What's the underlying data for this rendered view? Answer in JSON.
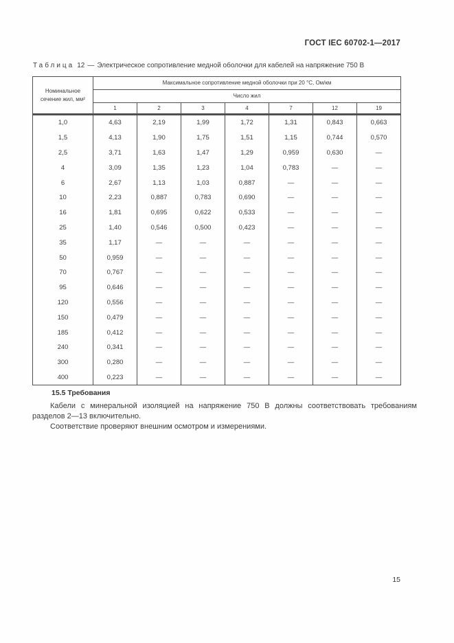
{
  "page": {
    "header": "ГОСТ IEC 60702-1—2017",
    "page_number": "15"
  },
  "table_caption": {
    "label": "Таблица",
    "number": "12",
    "dash": "—",
    "title": "Электрическое сопротивление медной оболочки для кабелей на напряжение 750 В"
  },
  "table": {
    "col1_header": "Номинальное сечение жил, мм²",
    "main_header": "Максимальное сопротивление медной оболочки при 20 °С, Ом/км",
    "sub_header": "Число жил",
    "columns": [
      "1",
      "2",
      "3",
      "4",
      "7",
      "12",
      "19"
    ],
    "rows": [
      [
        "1,0",
        "4,63",
        "2,19",
        "1,99",
        "1,72",
        "1,31",
        "0,843",
        "0,663"
      ],
      [
        "1,5",
        "4,13",
        "1,90",
        "1,75",
        "1,51",
        "1,15",
        "0,744",
        "0,570"
      ],
      [
        "2,5",
        "3,71",
        "1,63",
        "1,47",
        "1,29",
        "0,959",
        "0,630",
        "—"
      ],
      [
        "4",
        "3,09",
        "1,35",
        "1,23",
        "1,04",
        "0,783",
        "—",
        "—"
      ],
      [
        "6",
        "2,67",
        "1,13",
        "1,03",
        "0,887",
        "—",
        "—",
        "—"
      ],
      [
        "10",
        "2,23",
        "0,887",
        "0,783",
        "0,690",
        "—",
        "—",
        "—"
      ],
      [
        "16",
        "1,81",
        "0,695",
        "0,622",
        "0,533",
        "—",
        "—",
        "—"
      ],
      [
        "25",
        "1,40",
        "0,546",
        "0,500",
        "0,423",
        "—",
        "—",
        "—"
      ],
      [
        "35",
        "1,17",
        "—",
        "—",
        "—",
        "—",
        "—",
        "—"
      ],
      [
        "50",
        "0,959",
        "—",
        "—",
        "—",
        "—",
        "—",
        "—"
      ],
      [
        "70",
        "0,767",
        "—",
        "—",
        "—",
        "—",
        "—",
        "—"
      ],
      [
        "95",
        "0,646",
        "—",
        "—",
        "—",
        "—",
        "—",
        "—"
      ],
      [
        "120",
        "0,556",
        "—",
        "—",
        "—",
        "—",
        "—",
        "—"
      ],
      [
        "150",
        "0,479",
        "—",
        "—",
        "—",
        "—",
        "—",
        "—"
      ],
      [
        "185",
        "0,412",
        "—",
        "—",
        "—",
        "—",
        "—",
        "—"
      ],
      [
        "240",
        "0,341",
        "—",
        "—",
        "—",
        "—",
        "—",
        "—"
      ],
      [
        "300",
        "0,280",
        "—",
        "—",
        "—",
        "—",
        "—",
        "—"
      ],
      [
        "400",
        "0,223",
        "—",
        "—",
        "—",
        "—",
        "—",
        "—"
      ]
    ]
  },
  "section": {
    "heading": "15.5 Требования",
    "paragraph_1": "Кабели с минеральной изоляцией на напряжение 750 В должны соответствовать требованиям разделов 2—13 включительно.",
    "paragraph_2": "Соответствие проверяют внешним осмотром и измерениями."
  }
}
